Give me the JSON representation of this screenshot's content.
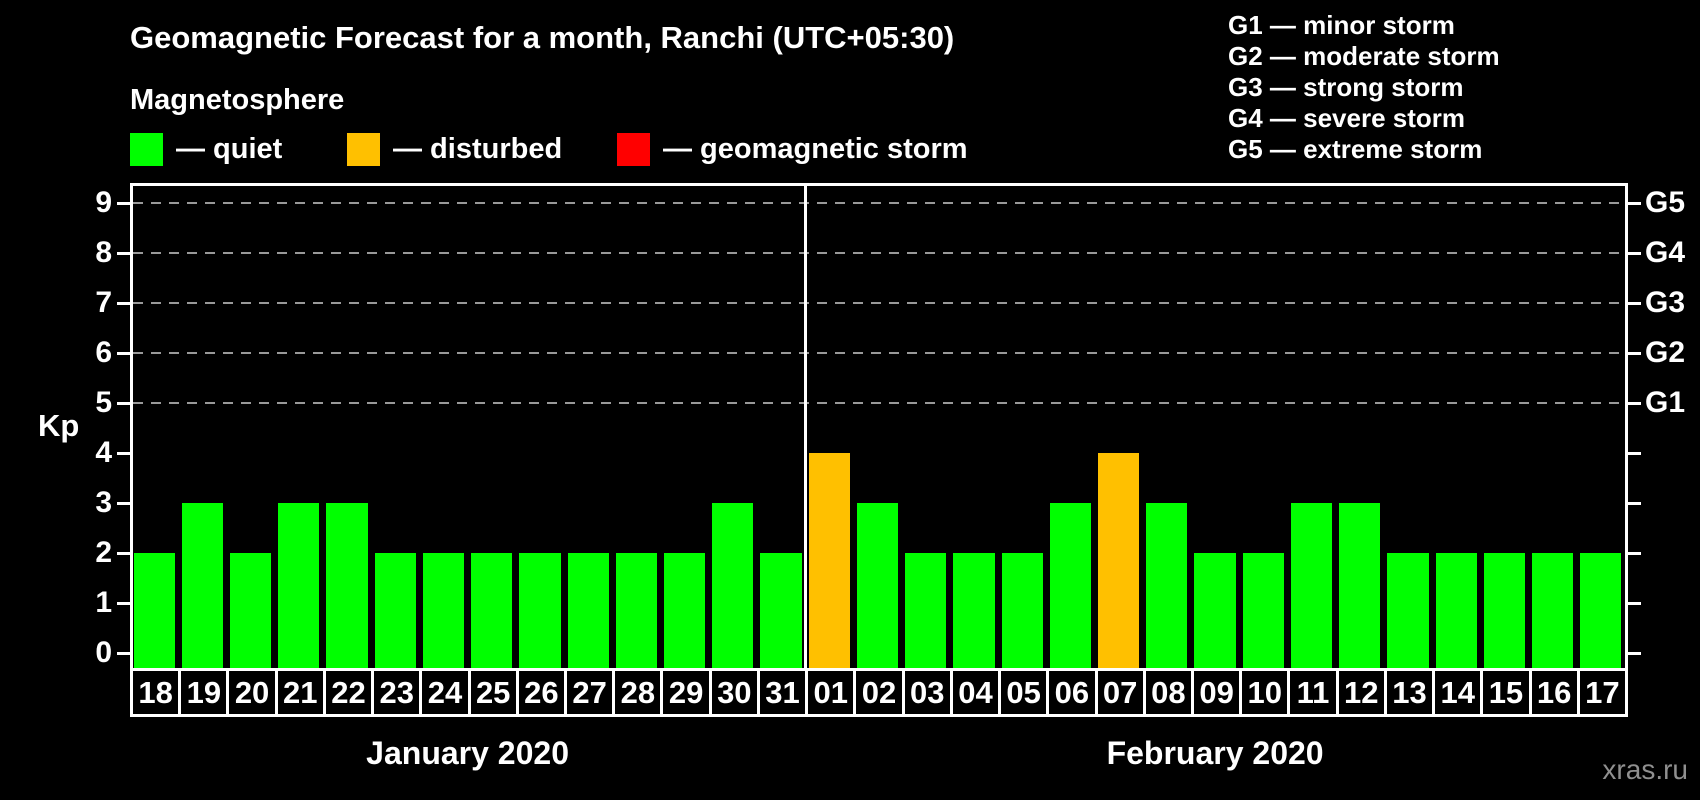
{
  "title": "Geomagnetic Forecast for a month, Ranchi (UTC+05:30)",
  "subtitle": "Magnetosphere",
  "legend": {
    "items": [
      {
        "label": "— quiet",
        "status": "quiet",
        "color": "#00ff00"
      },
      {
        "label": "— disturbed",
        "status": "disturbed",
        "color": "#ffc000"
      },
      {
        "label": "— geomagnetic storm",
        "status": "storm",
        "color": "#ff0000"
      }
    ]
  },
  "g_legend": [
    "G1 — minor storm",
    "G2 — moderate storm",
    "G3 — strong storm",
    "G4 — severe storm",
    "G5 — extreme storm"
  ],
  "watermark": "xras.ru",
  "chart_data": {
    "type": "bar",
    "title": "Geomagnetic Forecast for a month, Ranchi (UTC+05:30)",
    "ylabel": "Kp",
    "ylim": [
      0,
      9
    ],
    "y_ticks": [
      0,
      1,
      2,
      3,
      4,
      5,
      6,
      7,
      8,
      9
    ],
    "gridlines_at": [
      5,
      6,
      7,
      8,
      9
    ],
    "grid": "dashed horizontal lines at Kp 5-9 only",
    "legend_position": "top",
    "right_axis_labels": [
      {
        "kp": 5,
        "label": "G1"
      },
      {
        "kp": 6,
        "label": "G2"
      },
      {
        "kp": 7,
        "label": "G3"
      },
      {
        "kp": 8,
        "label": "G4"
      },
      {
        "kp": 9,
        "label": "G5"
      }
    ],
    "status_colors": {
      "quiet": "#00ff00",
      "disturbed": "#ffc000",
      "storm": "#ff0000"
    },
    "months": [
      {
        "label": "January 2020",
        "days": [
          {
            "day": "18",
            "kp": 2,
            "status": "quiet"
          },
          {
            "day": "19",
            "kp": 3,
            "status": "quiet"
          },
          {
            "day": "20",
            "kp": 2,
            "status": "quiet"
          },
          {
            "day": "21",
            "kp": 3,
            "status": "quiet"
          },
          {
            "day": "22",
            "kp": 3,
            "status": "quiet"
          },
          {
            "day": "23",
            "kp": 2,
            "status": "quiet"
          },
          {
            "day": "24",
            "kp": 2,
            "status": "quiet"
          },
          {
            "day": "25",
            "kp": 2,
            "status": "quiet"
          },
          {
            "day": "26",
            "kp": 2,
            "status": "quiet"
          },
          {
            "day": "27",
            "kp": 2,
            "status": "quiet"
          },
          {
            "day": "28",
            "kp": 2,
            "status": "quiet"
          },
          {
            "day": "29",
            "kp": 2,
            "status": "quiet"
          },
          {
            "day": "30",
            "kp": 3,
            "status": "quiet"
          },
          {
            "day": "31",
            "kp": 2,
            "status": "quiet"
          }
        ]
      },
      {
        "label": "February 2020",
        "days": [
          {
            "day": "01",
            "kp": 4,
            "status": "disturbed"
          },
          {
            "day": "02",
            "kp": 3,
            "status": "quiet"
          },
          {
            "day": "03",
            "kp": 2,
            "status": "quiet"
          },
          {
            "day": "04",
            "kp": 2,
            "status": "quiet"
          },
          {
            "day": "05",
            "kp": 2,
            "status": "quiet"
          },
          {
            "day": "06",
            "kp": 3,
            "status": "quiet"
          },
          {
            "day": "07",
            "kp": 4,
            "status": "disturbed"
          },
          {
            "day": "08",
            "kp": 3,
            "status": "quiet"
          },
          {
            "day": "09",
            "kp": 2,
            "status": "quiet"
          },
          {
            "day": "10",
            "kp": 2,
            "status": "quiet"
          },
          {
            "day": "11",
            "kp": 3,
            "status": "quiet"
          },
          {
            "day": "12",
            "kp": 3,
            "status": "quiet"
          },
          {
            "day": "13",
            "kp": 2,
            "status": "quiet"
          },
          {
            "day": "14",
            "kp": 2,
            "status": "quiet"
          },
          {
            "day": "15",
            "kp": 2,
            "status": "quiet"
          },
          {
            "day": "16",
            "kp": 2,
            "status": "quiet"
          },
          {
            "day": "17",
            "kp": 2,
            "status": "quiet"
          }
        ]
      }
    ]
  }
}
